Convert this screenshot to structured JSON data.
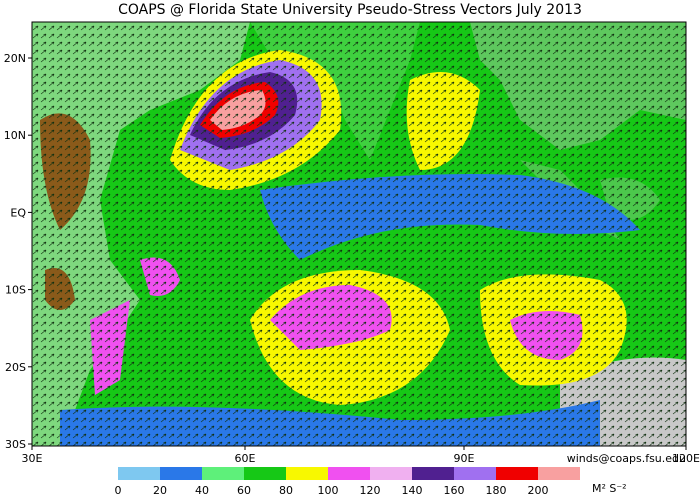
{
  "title": "COAPS @ Florida State University Pseudo-Stress Vectors July 2013",
  "lat_labels": [
    "20N",
    "10N",
    "EQ",
    "10S",
    "20S",
    "30S"
  ],
  "lon_labels": [
    "30E",
    "60E",
    "90E",
    "120E"
  ],
  "credit": "winds@coaps.fsu.edu",
  "colorbar": {
    "ticks": [
      0,
      20,
      40,
      60,
      80,
      100,
      120,
      140,
      160,
      180,
      200
    ],
    "colors": [
      "#7ec8f0",
      "#2a78e8",
      "#5ef07a",
      "#16c816",
      "#f8f800",
      "#f050f0",
      "#f0b0f0",
      "#502090",
      "#a070f0",
      "#f00000",
      "#f8a0a0"
    ],
    "unit": "M² S⁻²"
  }
}
